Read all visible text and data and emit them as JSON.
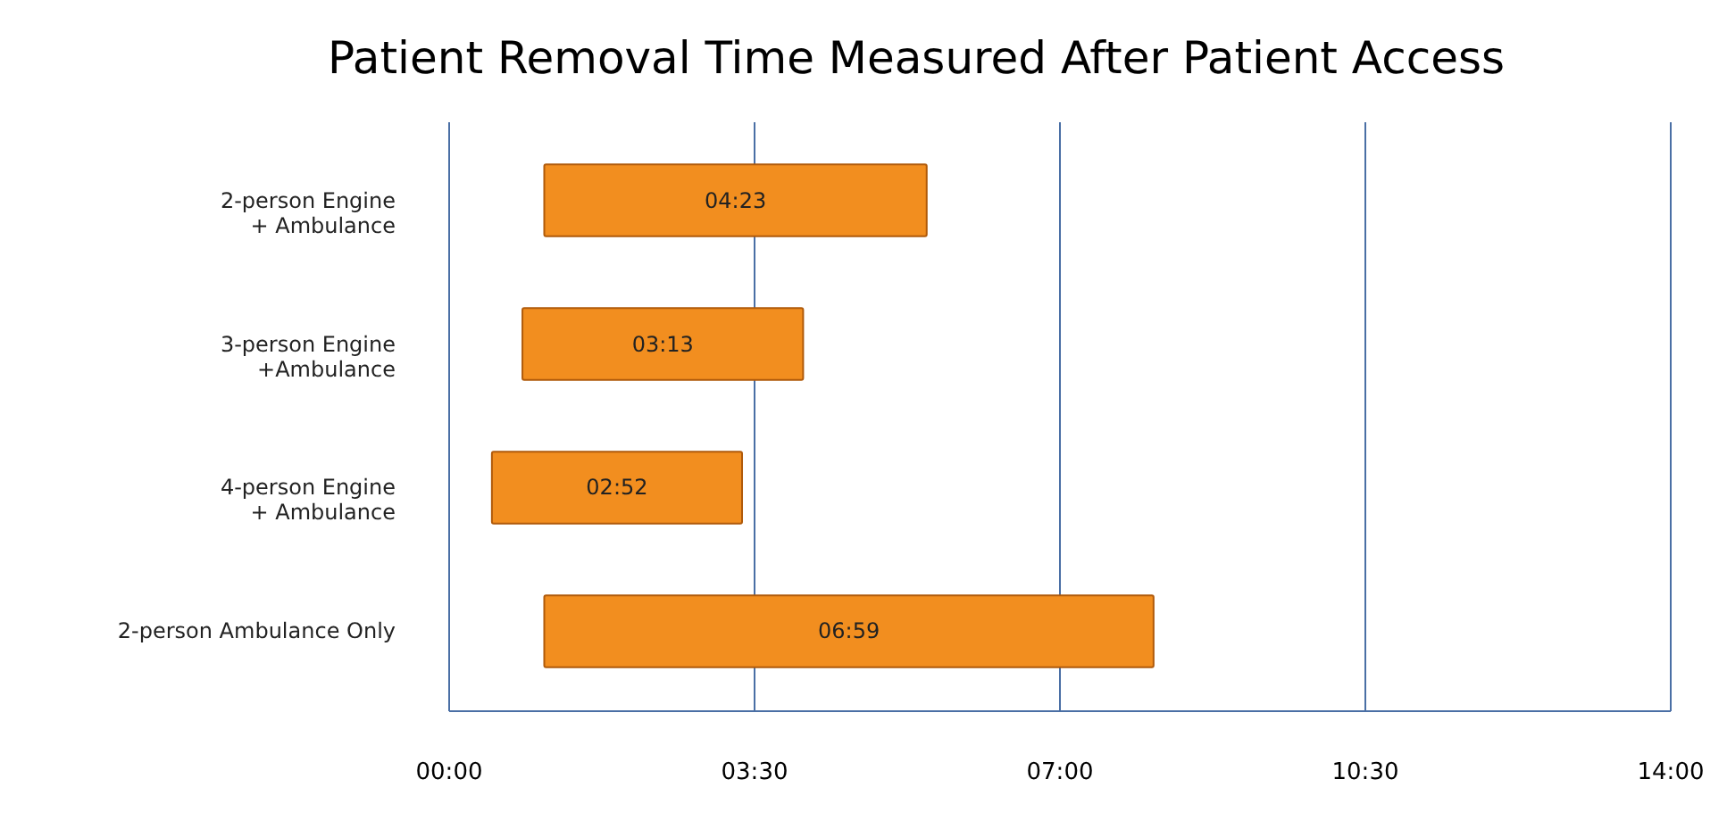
{
  "chart_data": {
    "type": "bar",
    "orientation": "horizontal",
    "title": "Patient Removal Time Measured After Patient Access",
    "categories": [
      "2-person Engine + Ambulance",
      "3-person Engine +Ambulance",
      "4-person Engine + Ambulance",
      "2-person Ambulance Only"
    ],
    "base": [
      1.1,
      0.85,
      0.5,
      1.1
    ],
    "values": [
      4.383,
      3.217,
      2.867,
      6.983
    ],
    "value_labels": [
      "04:23",
      "03:13",
      "02:52",
      "06:59"
    ],
    "color": "#f28e1f",
    "xlim": [
      0,
      14
    ],
    "xticks": [
      {
        "value": 0,
        "label": "00:00"
      },
      {
        "value": 3.5,
        "label": "03:30"
      },
      {
        "value": 7,
        "label": "07:00"
      },
      {
        "value": 10.5,
        "label": "10:30"
      },
      {
        "value": 14,
        "label": "14:00"
      }
    ],
    "grid": "x"
  }
}
